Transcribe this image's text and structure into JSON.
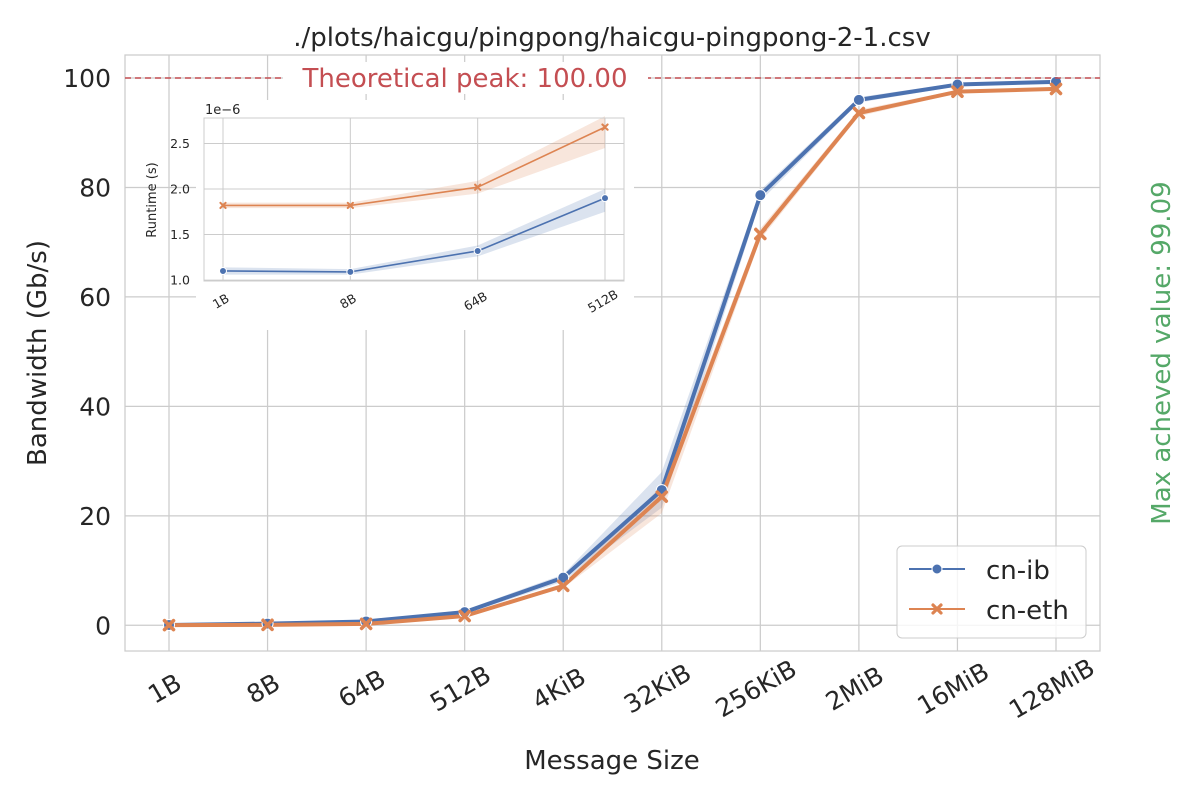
{
  "chart_data": [
    {
      "type": "line",
      "title": "./plots/haicgu/pingpong/haicgu-pingpong-2-1.csv",
      "xlabel": "Message Size",
      "ylabel": "Bandwidth (Gb/s)",
      "categories": [
        "1B",
        "8B",
        "64B",
        "512B",
        "4KiB",
        "32KiB",
        "256KiB",
        "2MiB",
        "16MiB",
        "128MiB"
      ],
      "ylim": [
        -4.7,
        104.2
      ],
      "yticks": [
        0,
        20,
        40,
        60,
        80,
        100
      ],
      "grid": true,
      "legend_position": "lower-right",
      "series": [
        {
          "name": "cn-ib",
          "color": "#4c72b0",
          "marker": "circle",
          "values": [
            0.06,
            0.3,
            0.7,
            2.4,
            8.7,
            24.7,
            78.6,
            96.0,
            98.8,
            99.3
          ],
          "band_low": [
            0.05,
            0.25,
            0.6,
            2.0,
            8.0,
            21.5,
            77.5,
            95.5,
            98.5,
            99.0
          ],
          "band_high": [
            0.08,
            0.35,
            0.8,
            2.8,
            9.3,
            28.0,
            79.5,
            96.5,
            99.1,
            99.5
          ]
        },
        {
          "name": "cn-eth",
          "color": "#dd8452",
          "marker": "x",
          "values": [
            0.03,
            0.08,
            0.25,
            1.7,
            7.2,
            23.5,
            71.5,
            93.6,
            97.5,
            98.0
          ],
          "band_low": [
            0.02,
            0.06,
            0.2,
            1.4,
            6.8,
            20.5,
            70.5,
            93.0,
            97.2,
            97.7
          ],
          "band_high": [
            0.04,
            0.1,
            0.3,
            2.0,
            7.6,
            25.5,
            72.5,
            94.2,
            97.8,
            98.3
          ]
        }
      ],
      "annotations": {
        "peak_label": "Theoretical peak: 100.00",
        "peak_value": 100,
        "peak_color": "#c44e52",
        "max_label": "Max acheved value: 99.09",
        "max_color": "#55a868"
      }
    },
    {
      "type": "line",
      "ylabel": "Runtime (s)",
      "yscale_label": "1e−6",
      "categories": [
        "1B",
        "8B",
        "64B",
        "512B"
      ],
      "ylim": [
        0.99,
        2.78
      ],
      "yticks": [
        "1.0",
        "1.5",
        "2.0",
        "2.5"
      ],
      "ytick_values": [
        1.0,
        1.5,
        2.0,
        2.5
      ],
      "grid": true,
      "series": [
        {
          "name": "cn-ib",
          "color": "#4c72b0",
          "marker": "circle",
          "values": [
            1.1,
            1.09,
            1.32,
            1.9
          ],
          "band_low": [
            1.06,
            1.06,
            1.26,
            1.75
          ],
          "band_high": [
            1.14,
            1.12,
            1.38,
            2.0
          ]
        },
        {
          "name": "cn-eth",
          "color": "#dd8452",
          "marker": "x",
          "values": [
            1.82,
            1.82,
            2.02,
            2.68
          ],
          "band_low": [
            1.79,
            1.79,
            1.95,
            2.45
          ],
          "band_high": [
            1.85,
            1.85,
            2.09,
            2.8
          ]
        }
      ]
    }
  ]
}
